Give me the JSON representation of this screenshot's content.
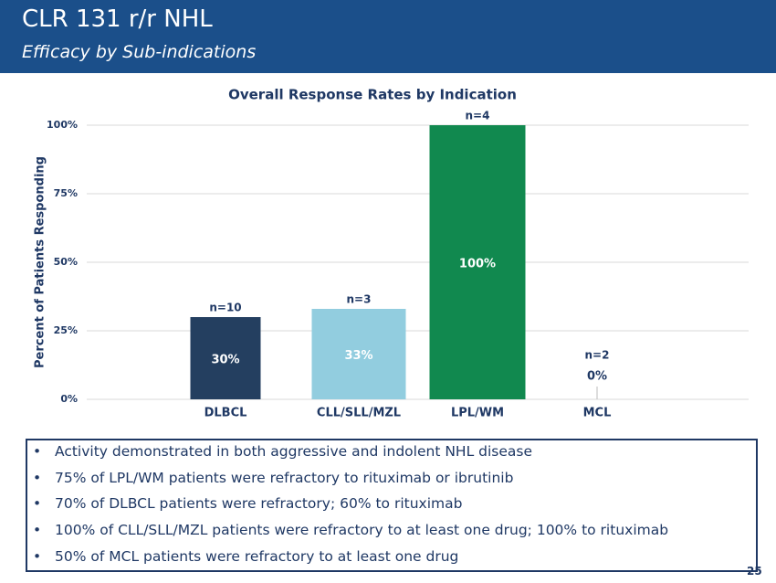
{
  "header": {
    "title": "CLR 131 r/r NHL",
    "subtitle": "Efficacy by Sub-indications"
  },
  "chart_data": {
    "type": "bar",
    "title": "Overall Response Rates by Indication",
    "ylabel": "Percent of Patients Responding",
    "categories": [
      "DLBCL",
      "CLL/SLL/MZL",
      "LPL/WM",
      "MCL"
    ],
    "values": [
      30,
      33,
      100,
      0
    ],
    "value_labels": [
      "30%",
      "33%",
      "100%",
      "0%"
    ],
    "annotations": [
      "n=10",
      "n=3",
      "n=4",
      "n=2"
    ],
    "colors": [
      "#243f60",
      "#92cddf",
      "#11894f",
      "#a6a6a6"
    ],
    "ylim": [
      0,
      100
    ],
    "yticks": [
      {
        "value": 0,
        "label": "0%"
      },
      {
        "value": 25,
        "label": "25%"
      },
      {
        "value": 50,
        "label": "50%"
      },
      {
        "value": 75,
        "label": "75%"
      },
      {
        "value": 100,
        "label": "100%"
      }
    ],
    "grid": true
  },
  "bullets": [
    "Activity demonstrated in both aggressive and indolent NHL disease",
    "75% of LPL/WM patients were refractory to rituximab or ibrutinib",
    "70% of DLBCL patients were refractory; 60% to rituximab",
    "100% of CLL/SLL/MZL patients were refractory to at least one drug; 100% to rituximab",
    "50% of MCL patients were refractory to at least one drug"
  ],
  "page_number": "25"
}
